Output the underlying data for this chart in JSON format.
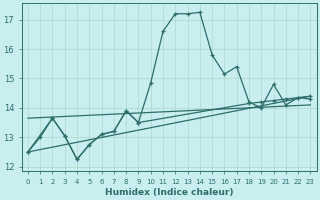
{
  "xlabel": "Humidex (Indice chaleur)",
  "bg_color": "#c8eef0",
  "grid_color": "#b0d8c8",
  "line_color": "#2d6e6a",
  "xlim": [
    -0.5,
    23.5
  ],
  "ylim": [
    11.85,
    17.55
  ],
  "xticks": [
    0,
    1,
    2,
    3,
    4,
    5,
    6,
    7,
    8,
    9,
    10,
    11,
    12,
    13,
    14,
    15,
    16,
    17,
    18,
    19,
    20,
    21,
    22,
    23
  ],
  "yticks": [
    12,
    13,
    14,
    15,
    16,
    17
  ],
  "line1_x": [
    0,
    1,
    2,
    3,
    4,
    5,
    6,
    7,
    8,
    9,
    10,
    11,
    12,
    13,
    14,
    15,
    16,
    17,
    18,
    19,
    20,
    21,
    22,
    23
  ],
  "line1_y": [
    12.5,
    13.0,
    13.65,
    13.05,
    12.25,
    12.75,
    13.1,
    13.2,
    13.9,
    13.5,
    14.85,
    16.6,
    17.2,
    17.2,
    17.25,
    15.8,
    15.15,
    15.4,
    14.2,
    14.0,
    14.8,
    14.1,
    14.35,
    14.3
  ],
  "line2_x": [
    0,
    2,
    3,
    4,
    5,
    6,
    7,
    8,
    9,
    18,
    19,
    20,
    21,
    22,
    23
  ],
  "line2_y": [
    12.5,
    13.65,
    13.05,
    12.25,
    12.75,
    13.1,
    13.2,
    13.9,
    13.5,
    14.15,
    14.2,
    14.25,
    14.3,
    14.35,
    14.4
  ],
  "line3_x": [
    0,
    23
  ],
  "line3_y": [
    12.5,
    14.4
  ],
  "line4_x": [
    0,
    23
  ],
  "line4_y": [
    13.65,
    14.1
  ]
}
